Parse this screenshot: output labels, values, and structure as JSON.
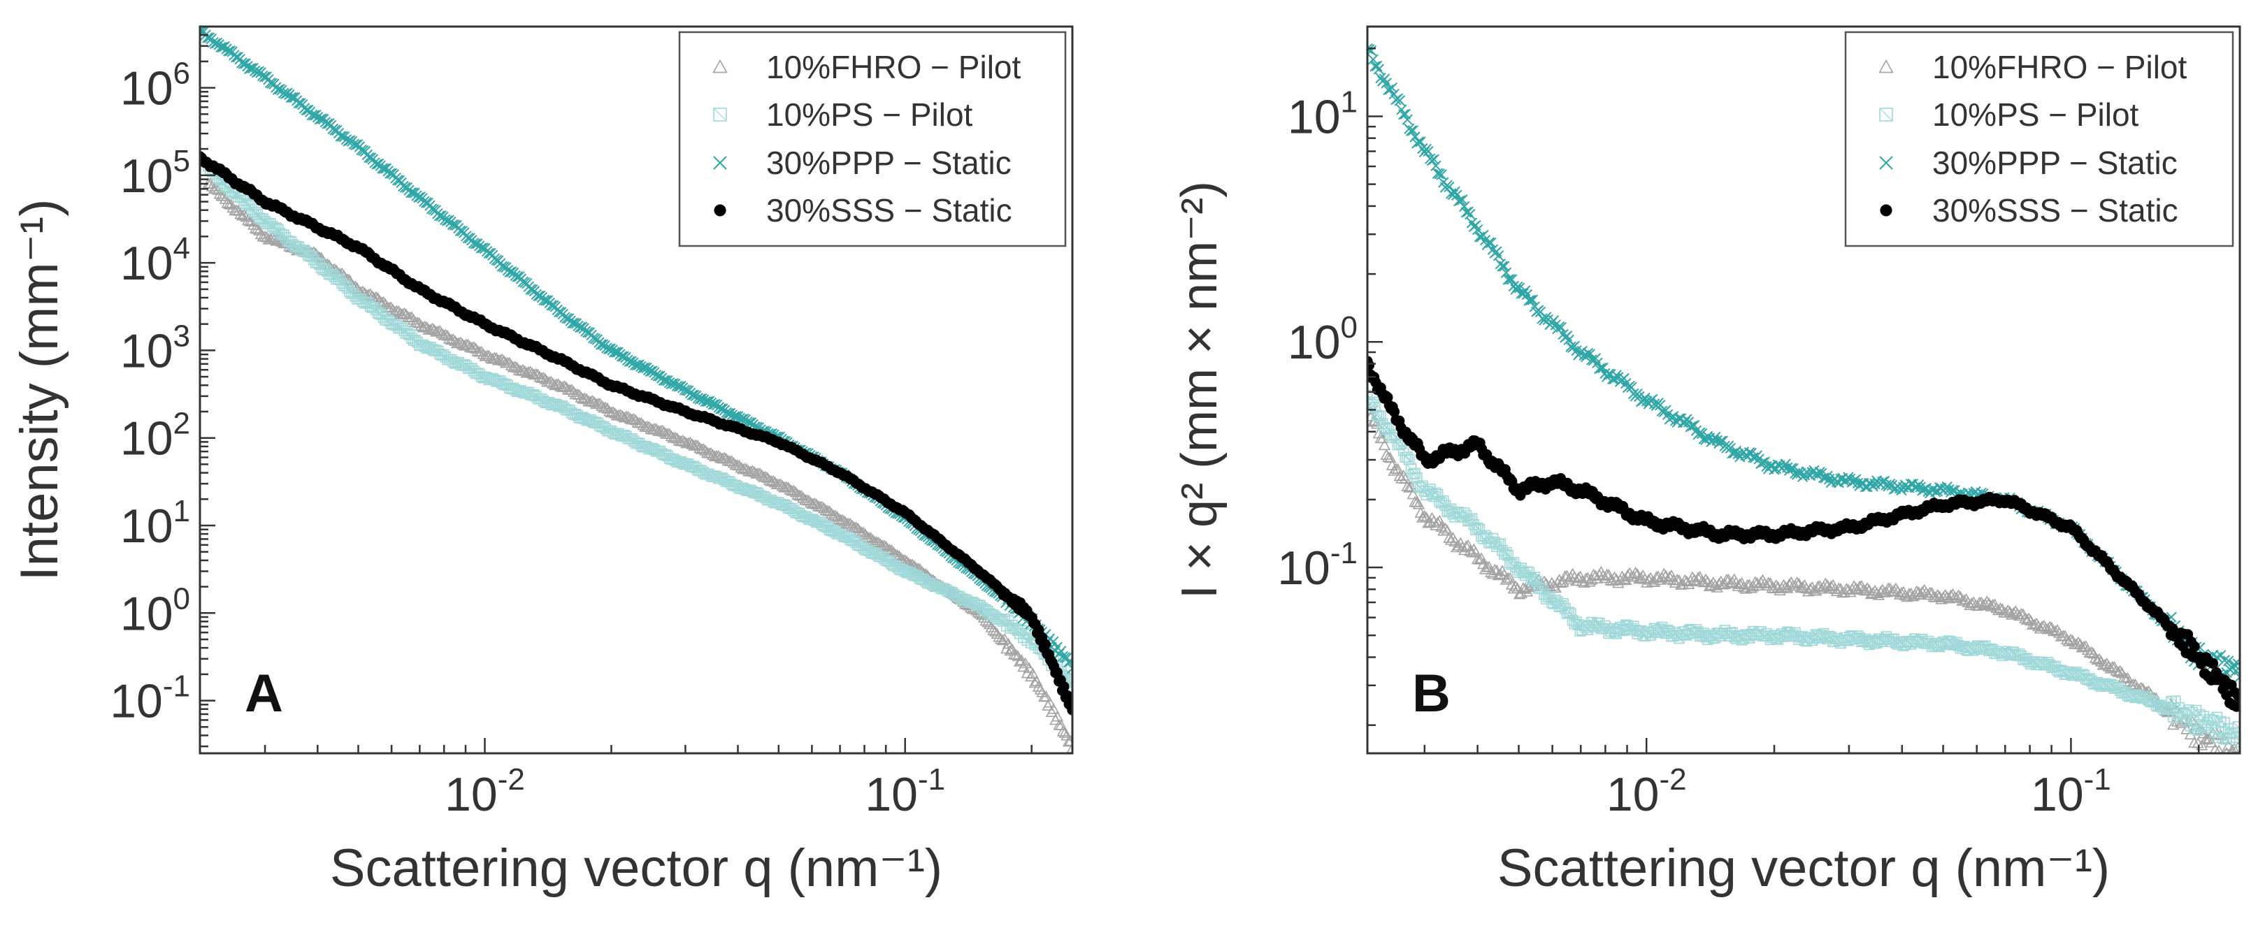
{
  "chart_data": [
    {
      "type": "scatter",
      "panel_label": "A",
      "xscale": "log",
      "yscale": "log",
      "xlim": [
        0.0021,
        0.25
      ],
      "ylim": [
        0.025,
        5000000
      ],
      "xlabel": "Scattering vector q (nm⁻¹)",
      "ylabel": "Intensity (mm⁻¹)",
      "xticks": [
        {
          "base": "10",
          "exp": "-2",
          "value": 0.01
        },
        {
          "base": "10",
          "exp": "-1",
          "value": 0.1
        }
      ],
      "yticks": [
        {
          "base": "10",
          "exp": "6",
          "value": 1000000
        },
        {
          "base": "10",
          "exp": "5",
          "value": 100000
        },
        {
          "base": "10",
          "exp": "4",
          "value": 10000
        },
        {
          "base": "10",
          "exp": "3",
          "value": 1000
        },
        {
          "base": "10",
          "exp": "2",
          "value": 100
        },
        {
          "base": "10",
          "exp": "1",
          "value": 10
        },
        {
          "base": "10",
          "exp": "0",
          "value": 1
        },
        {
          "base": "10",
          "exp": "-1",
          "value": 0.1
        }
      ],
      "legend_position": "top-right",
      "series": [
        {
          "name": "10%FHRO − Pilot",
          "marker": "triangle",
          "color": "#a3a3a3",
          "x": [
            0.0022,
            0.003,
            0.004,
            0.005,
            0.007,
            0.01,
            0.015,
            0.02,
            0.03,
            0.05,
            0.07,
            0.1,
            0.15,
            0.2,
            0.25
          ],
          "y": [
            80000,
            20000,
            12000,
            5000,
            2000,
            900,
            400,
            200,
            90,
            30,
            12,
            4,
            1,
            0.2,
            0.03
          ]
        },
        {
          "name": "10%PS − Pilot",
          "marker": "square",
          "color": "#9ed8d8",
          "x": [
            0.0022,
            0.003,
            0.004,
            0.005,
            0.007,
            0.01,
            0.015,
            0.02,
            0.03,
            0.05,
            0.07,
            0.1,
            0.15,
            0.2,
            0.25
          ],
          "y": [
            120000,
            30000,
            10000,
            4000,
            1200,
            500,
            230,
            120,
            50,
            18,
            8,
            3,
            1.2,
            0.5,
            0.15
          ]
        },
        {
          "name": "30%PPP − Static",
          "marker": "cross",
          "color": "#2fa7a7",
          "x": [
            0.0021,
            0.003,
            0.005,
            0.007,
            0.01,
            0.015,
            0.02,
            0.03,
            0.05,
            0.07,
            0.1,
            0.15,
            0.2,
            0.25
          ],
          "y": [
            4500000,
            1300000,
            210000,
            55000,
            14000,
            2800,
            1000,
            350,
            100,
            40,
            12,
            2.5,
            0.8,
            0.25
          ]
        },
        {
          "name": "30%SSS − Static",
          "marker": "circle",
          "color": "#000000",
          "x": [
            0.0021,
            0.003,
            0.005,
            0.007,
            0.01,
            0.015,
            0.02,
            0.03,
            0.05,
            0.07,
            0.1,
            0.15,
            0.2,
            0.25
          ],
          "y": [
            160000,
            50000,
            15000,
            5000,
            2000,
            800,
            400,
            200,
            90,
            40,
            14,
            3,
            0.9,
            0.08
          ]
        }
      ]
    },
    {
      "type": "scatter",
      "panel_label": "B",
      "xscale": "log",
      "yscale": "log",
      "xlim": [
        0.0022,
        0.25
      ],
      "ylim": [
        0.015,
        25
      ],
      "xlabel": "Scattering vector q (nm⁻¹)",
      "ylabel": "I × q² (mm × nm⁻²)",
      "xticks": [
        {
          "base": "10",
          "exp": "-2",
          "value": 0.01
        },
        {
          "base": "10",
          "exp": "-1",
          "value": 0.1
        }
      ],
      "yticks": [
        {
          "base": "10",
          "exp": "1",
          "value": 10
        },
        {
          "base": "10",
          "exp": "0",
          "value": 1
        },
        {
          "base": "10",
          "exp": "-1",
          "value": 0.1
        }
      ],
      "legend_position": "top-right",
      "series": [
        {
          "name": "10%FHRO − Pilot",
          "marker": "triangle",
          "color": "#a3a3a3",
          "x": [
            0.0022,
            0.0025,
            0.003,
            0.004,
            0.005,
            0.007,
            0.01,
            0.015,
            0.02,
            0.03,
            0.05,
            0.07,
            0.1,
            0.15,
            0.2,
            0.25
          ],
          "y": [
            0.5,
            0.3,
            0.17,
            0.11,
            0.08,
            0.09,
            0.09,
            0.085,
            0.083,
            0.08,
            0.075,
            0.065,
            0.048,
            0.028,
            0.018,
            0.015
          ]
        },
        {
          "name": "10%PS − Pilot",
          "marker": "square",
          "color": "#9ed8d8",
          "x": [
            0.0022,
            0.0025,
            0.003,
            0.004,
            0.005,
            0.007,
            0.01,
            0.015,
            0.02,
            0.03,
            0.05,
            0.07,
            0.1,
            0.15,
            0.2,
            0.25
          ],
          "y": [
            0.55,
            0.4,
            0.22,
            0.15,
            0.1,
            0.055,
            0.052,
            0.05,
            0.05,
            0.048,
            0.046,
            0.042,
            0.034,
            0.026,
            0.021,
            0.018
          ]
        },
        {
          "name": "30%PPP − Static",
          "marker": "cross",
          "color": "#2fa7a7",
          "x": [
            0.0022,
            0.003,
            0.004,
            0.005,
            0.007,
            0.01,
            0.015,
            0.02,
            0.03,
            0.05,
            0.07,
            0.1,
            0.15,
            0.2,
            0.25
          ],
          "y": [
            20,
            7,
            3.2,
            1.7,
            0.9,
            0.55,
            0.35,
            0.28,
            0.24,
            0.22,
            0.2,
            0.15,
            0.07,
            0.04,
            0.035
          ]
        },
        {
          "name": "30%SSS − Static",
          "marker": "circle",
          "color": "#000000",
          "x": [
            0.0022,
            0.0025,
            0.003,
            0.004,
            0.005,
            0.006,
            0.007,
            0.01,
            0.015,
            0.02,
            0.03,
            0.05,
            0.07,
            0.1,
            0.15,
            0.2,
            0.25
          ],
          "y": [
            0.8,
            0.5,
            0.3,
            0.35,
            0.22,
            0.24,
            0.22,
            0.16,
            0.14,
            0.14,
            0.15,
            0.19,
            0.2,
            0.15,
            0.07,
            0.04,
            0.025
          ]
        }
      ]
    }
  ]
}
